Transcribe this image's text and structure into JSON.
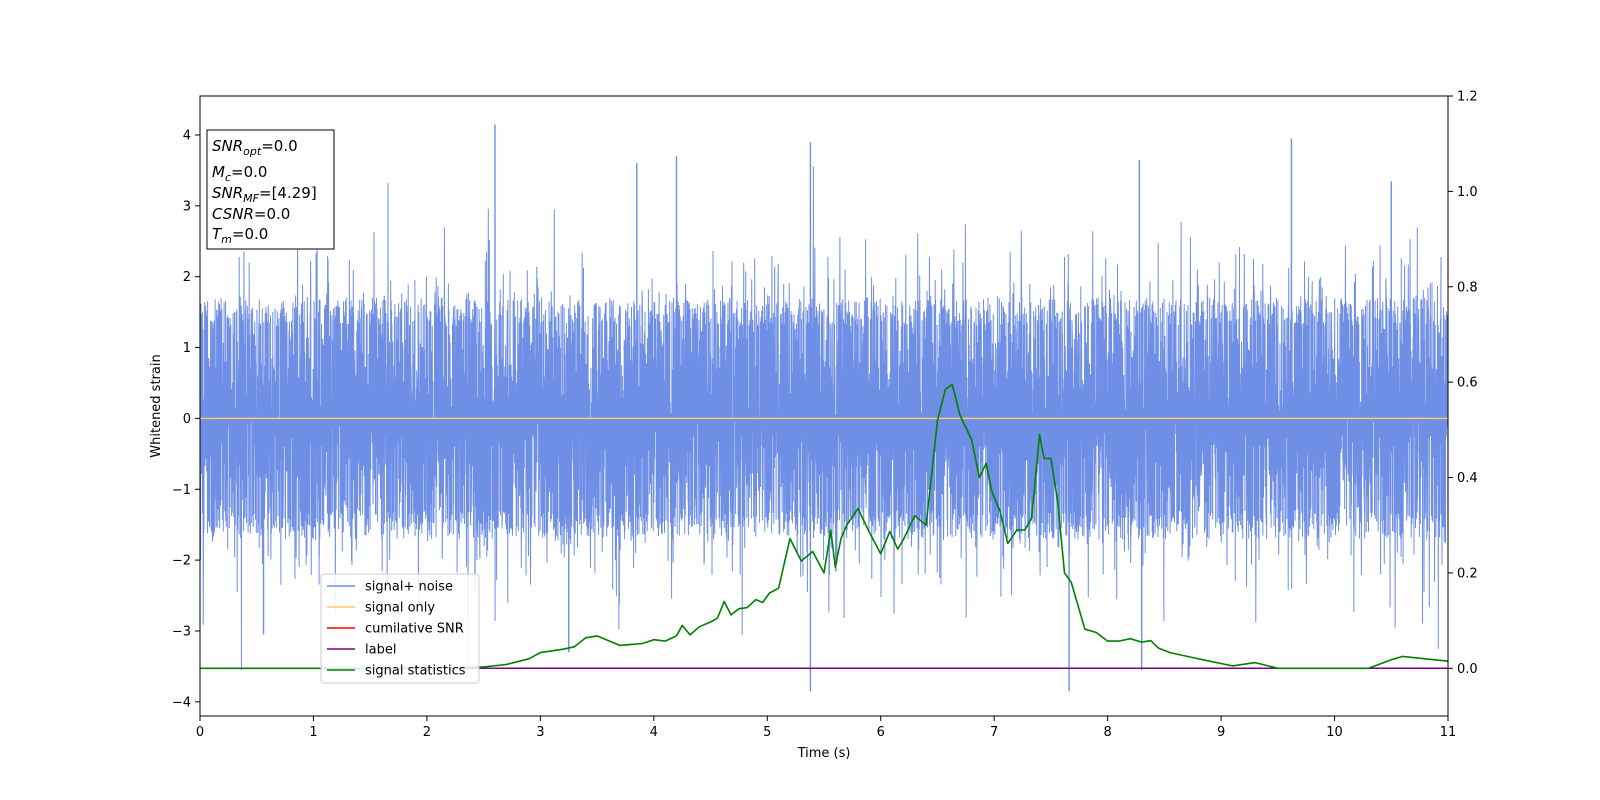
{
  "chart_data": {
    "type": "line",
    "xlabel": "Time (s)",
    "ylabel": "Whitened strain",
    "xlim": [
      0,
      11
    ],
    "ylim": [
      -4.2,
      4.55
    ],
    "y2lim": [
      -0.1,
      1.2
    ],
    "xticks": [
      "0",
      "1",
      "2",
      "3",
      "4",
      "5",
      "6",
      "7",
      "8",
      "9",
      "10",
      "11"
    ],
    "yticks": [
      "−4",
      "−3",
      "−2",
      "−1",
      "0",
      "1",
      "2",
      "3",
      "4"
    ],
    "y2ticks": [
      "0.0",
      "0.2",
      "0.4",
      "0.6",
      "0.8",
      "1.0",
      "1.2"
    ],
    "grid": false,
    "legend_position": "lower-left",
    "legend": [
      {
        "name": "signal+ noise",
        "color": "#6f8fe6"
      },
      {
        "name": "signal only",
        "color": "#ffc870"
      },
      {
        "name": "cumilative SNR",
        "color": "#ff0000"
      },
      {
        "name": "label",
        "color": "#800080"
      },
      {
        "name": "signal statistics",
        "color": "#008000"
      }
    ],
    "info_box": [
      {
        "base": "SNR",
        "sub": "opt",
        "rest": "=0.0"
      },
      {
        "base": "M",
        "sub": "c",
        "rest": "=0.0"
      },
      {
        "base": "SNR",
        "sub": "MF",
        "rest": "=[4.29]"
      },
      {
        "base": "CSNR",
        "sub": "",
        "rest": "=0.0"
      },
      {
        "base": "T",
        "sub": "m",
        "rest": "=0.0"
      }
    ],
    "series": [
      {
        "name": "signal+ noise",
        "axis": "left",
        "color": "#6f8fe6",
        "description_noise": {
          "mean": 0.0,
          "typical_range": [
            -2.0,
            2.0
          ],
          "extreme_range": [
            -3.85,
            4.15
          ]
        },
        "peaks": [
          [
            2.6,
            4.15
          ],
          [
            5.38,
            3.9
          ],
          [
            9.62,
            3.95
          ],
          [
            3.85,
            3.6
          ],
          [
            4.2,
            3.7
          ],
          [
            8.28,
            3.65
          ],
          [
            10.5,
            3.35
          ]
        ],
        "troughs": [
          [
            5.38,
            -3.85
          ],
          [
            7.66,
            -3.85
          ],
          [
            8.3,
            -3.55
          ],
          [
            3.25,
            -3.3
          ],
          [
            0.56,
            -3.05
          ]
        ]
      },
      {
        "name": "signal only",
        "axis": "left",
        "color": "#ffc870",
        "x": [
          0,
          11
        ],
        "y": [
          0,
          0
        ]
      },
      {
        "name": "label",
        "axis": "right",
        "color": "#800080",
        "x": [
          0,
          11
        ],
        "y": [
          0,
          0
        ]
      },
      {
        "name": "signal statistics",
        "axis": "right",
        "color": "#008000",
        "x": [
          0,
          0.5,
          1.0,
          1.5,
          2.0,
          2.3,
          2.5,
          2.7,
          2.9,
          3.0,
          3.2,
          3.3,
          3.4,
          3.5,
          3.6,
          3.7,
          3.9,
          4.0,
          4.1,
          4.2,
          4.25,
          4.32,
          4.4,
          4.5,
          4.56,
          4.62,
          4.68,
          4.75,
          4.82,
          4.9,
          4.96,
          5.02,
          5.1,
          5.2,
          5.3,
          5.4,
          5.5,
          5.56,
          5.6,
          5.65,
          5.7,
          5.8,
          5.9,
          6.0,
          6.08,
          6.15,
          6.2,
          6.3,
          6.4,
          6.5,
          6.57,
          6.63,
          6.7,
          6.8,
          6.87,
          6.93,
          6.98,
          7.05,
          7.12,
          7.2,
          7.27,
          7.33,
          7.4,
          7.44,
          7.5,
          7.56,
          7.62,
          7.68,
          7.8,
          7.9,
          8.0,
          8.1,
          8.2,
          8.3,
          8.38,
          8.45,
          8.55,
          8.7,
          8.9,
          9.1,
          9.3,
          9.5,
          9.8,
          10.0,
          10.3,
          10.5,
          10.6,
          10.8,
          11.0
        ],
        "y": [
          0.0,
          0.0,
          0.0,
          0.0,
          0.0,
          0.002,
          0.003,
          0.008,
          0.02,
          0.033,
          0.04,
          0.045,
          0.064,
          0.068,
          0.058,
          0.048,
          0.052,
          0.06,
          0.057,
          0.068,
          0.09,
          0.07,
          0.087,
          0.097,
          0.105,
          0.14,
          0.112,
          0.125,
          0.127,
          0.144,
          0.138,
          0.158,
          0.168,
          0.272,
          0.225,
          0.245,
          0.2,
          0.29,
          0.212,
          0.272,
          0.3,
          0.335,
          0.285,
          0.24,
          0.287,
          0.25,
          0.27,
          0.32,
          0.3,
          0.52,
          0.585,
          0.595,
          0.53,
          0.48,
          0.4,
          0.43,
          0.37,
          0.33,
          0.262,
          0.29,
          0.29,
          0.315,
          0.49,
          0.44,
          0.44,
          0.35,
          0.2,
          0.18,
          0.082,
          0.075,
          0.057,
          0.057,
          0.062,
          0.055,
          0.058,
          0.042,
          0.033,
          0.025,
          0.015,
          0.005,
          0.012,
          0.0,
          0.0,
          0.0,
          0.0,
          0.018,
          0.025,
          0.02,
          0.015
        ]
      }
    ]
  }
}
